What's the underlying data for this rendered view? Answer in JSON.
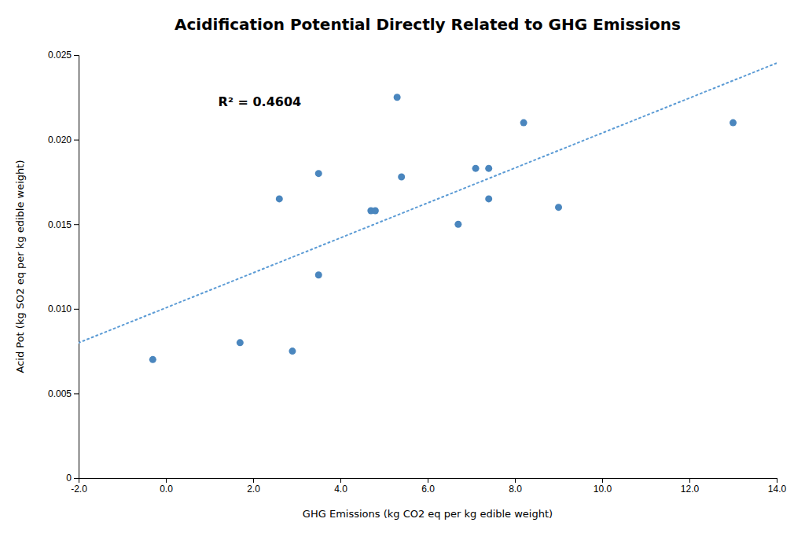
{
  "chart_data": {
    "type": "scatter",
    "title": "Acidification Potential Directly Related to GHG Emissions",
    "x_label": "GHG Emissions (kg CO2 eq per kg edible weight)",
    "y_label": "Acid Pot (kg SO2 eq per kg edible weight)",
    "series": [
      {
        "type": "scatter",
        "color": "#4a86be",
        "x": [
          -0.3,
          1.7,
          2.6,
          2.9,
          3.5,
          3.5,
          4.7,
          4.8,
          5.3,
          5.4,
          6.7,
          7.1,
          7.4,
          7.4,
          8.2,
          9.0,
          13.0
        ],
        "values": [
          0.007,
          0.008,
          0.0165,
          0.0075,
          0.018,
          0.012,
          0.0158,
          0.0158,
          0.0225,
          0.0178,
          0.015,
          0.0183,
          0.0165,
          0.0183,
          0.021,
          0.016,
          0.021
        ]
      },
      {
        "type": "line",
        "color": "#5b9bd5",
        "line_style": "dotted",
        "x": [
          -2.0,
          14.0
        ],
        "values": [
          0.007994,
          0.024524
        ]
      }
    ],
    "annotations": [
      {
        "text": "R² = 0.4604",
        "x": 1.2,
        "y": 0.022
      }
    ],
    "xlim": [
      -2.0,
      14.0
    ],
    "ylim": [
      0,
      0.025
    ],
    "xticks": [
      {
        "value": -2.0,
        "label": "-2.0"
      },
      {
        "value": 0.0,
        "label": "0.0"
      },
      {
        "value": 2.0,
        "label": "2.0"
      },
      {
        "value": 4.0,
        "label": "4.0"
      },
      {
        "value": 6.0,
        "label": "6.0"
      },
      {
        "value": 8.0,
        "label": "8.0"
      },
      {
        "value": 10.0,
        "label": "10.0"
      },
      {
        "value": 12.0,
        "label": "12.0"
      },
      {
        "value": 14.0,
        "label": "14.0"
      }
    ],
    "yticks": [
      0,
      0.005,
      {
        "value": 0.01,
        "label": "0.010"
      },
      0.015,
      {
        "value": 0.02,
        "label": "0.020"
      },
      0.025
    ],
    "grid": false
  }
}
